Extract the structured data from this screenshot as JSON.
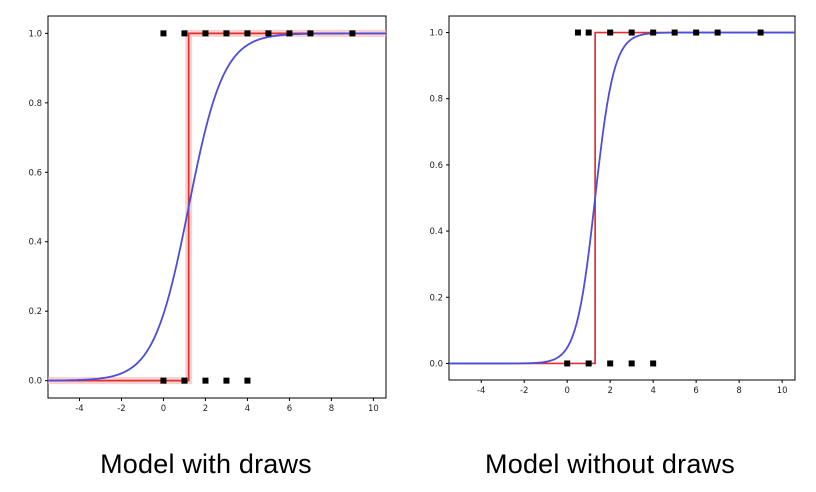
{
  "figure": {
    "background": "#ffffff"
  },
  "colors": {
    "sigmoid_curve": "#4d4ddb",
    "step_line": "#e03131",
    "draws_band": "#f5b8b8",
    "data_points": "#000000",
    "axis": "#000000",
    "tick_text": "#222222"
  },
  "chart_data": [
    {
      "type": "scatter",
      "caption": "Model with draws",
      "xlim": [
        -5.5,
        10.6
      ],
      "ylim": [
        -0.05,
        1.05
      ],
      "xticks": [
        -4,
        -2,
        0,
        2,
        4,
        6,
        8,
        10
      ],
      "yticks": [
        0.0,
        0.2,
        0.4,
        0.6,
        0.8,
        1.0
      ],
      "grid": false,
      "legend": "none",
      "series": [
        {
          "name": "observations-y1",
          "kind": "scatter",
          "y_level": 1.0,
          "x": [
            0,
            1,
            2,
            3,
            4,
            5,
            6,
            7,
            9
          ]
        },
        {
          "name": "observations-y0",
          "kind": "scatter",
          "y_level": 0.0,
          "x": [
            0,
            1,
            2,
            3,
            4
          ]
        },
        {
          "name": "step-fit",
          "kind": "step",
          "threshold": 1.2,
          "low": 0.0,
          "high": 1.0
        },
        {
          "name": "sigmoid-fit",
          "kind": "logistic",
          "x0": 1.2,
          "k": 1.2
        }
      ],
      "draws_band": true
    },
    {
      "type": "scatter",
      "caption": "Model without draws",
      "xlim": [
        -5.5,
        10.6
      ],
      "ylim": [
        -0.05,
        1.05
      ],
      "xticks": [
        -4,
        -2,
        0,
        2,
        4,
        6,
        8,
        10
      ],
      "yticks": [
        0.0,
        0.2,
        0.4,
        0.6,
        0.8,
        1.0
      ],
      "grid": false,
      "legend": "none",
      "series": [
        {
          "name": "observations-y1",
          "kind": "scatter",
          "y_level": 1.0,
          "x": [
            0.5,
            1,
            2,
            3,
            4,
            5,
            6,
            7,
            9
          ]
        },
        {
          "name": "observations-y0",
          "kind": "scatter",
          "y_level": 0.0,
          "x": [
            0,
            1,
            2,
            3,
            4
          ]
        },
        {
          "name": "step-fit",
          "kind": "step",
          "threshold": 1.3,
          "low": 0.0,
          "high": 1.0
        },
        {
          "name": "sigmoid-fit",
          "kind": "logistic",
          "x0": 1.3,
          "k": 2.3
        }
      ],
      "draws_band": false
    }
  ]
}
